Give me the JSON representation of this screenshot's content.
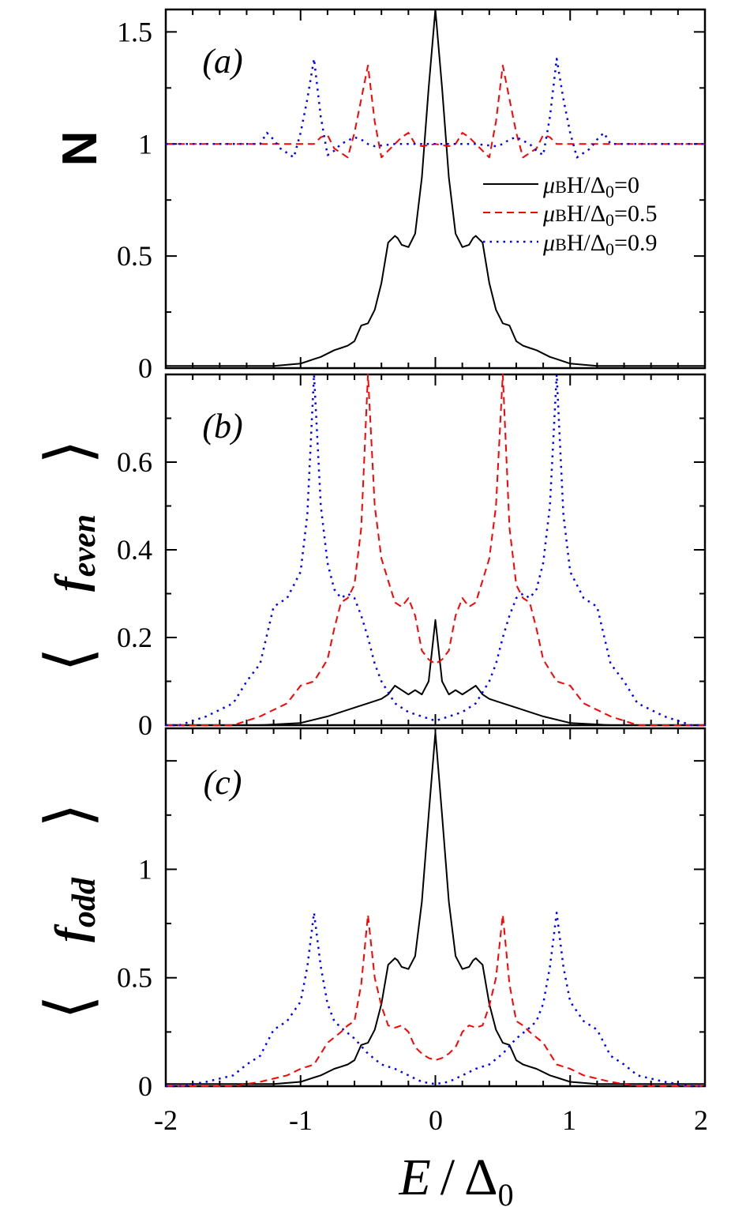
{
  "chart_data": {
    "type": "line",
    "xlabel": "E / Δ0",
    "xlabel_main": "E",
    "xlabel_slash": "/",
    "xlabel_delta": "Δ",
    "xlabel_sub": "0",
    "xlim": [
      -2,
      2
    ],
    "x_ticks": [
      "-2",
      "-1",
      "0",
      "1",
      "2"
    ],
    "legend": {
      "placement": "right, panel (a)",
      "entries": [
        {
          "mu": "μ",
          "b": "B",
          "h": "H/",
          "delta": "Δ",
          "zero": "0",
          "value": "=0",
          "color": "#000000",
          "dash": "solid"
        },
        {
          "mu": "μ",
          "b": "B",
          "h": "H/",
          "delta": "Δ",
          "zero": "0",
          "value": "=0.5",
          "color": "#ff0000",
          "dash": "dashed"
        },
        {
          "mu": "μ",
          "b": "B",
          "h": "H/",
          "delta": "Δ",
          "zero": "0",
          "value": "=0.9",
          "color": "#0000ff",
          "dash": "dotted"
        }
      ]
    },
    "panels": [
      {
        "label": "(a)",
        "ylabel": "N",
        "ylim": [
          0,
          1.6
        ],
        "y_ticks": [
          "0",
          "0.5",
          "1",
          "1.5"
        ],
        "y_tick_values": [
          0,
          0.5,
          1,
          1.5
        ],
        "series": [
          {
            "color": "#000000",
            "dash": "solid",
            "x": [
              -2,
              -1.2,
              -1.0,
              -0.9,
              -0.85,
              -0.75,
              -0.7,
              -0.65,
              -0.6,
              -0.55,
              -0.5,
              -0.45,
              -0.4,
              -0.35,
              -0.3,
              -0.28,
              -0.25,
              -0.2,
              -0.15,
              -0.1,
              -0.05,
              0,
              0.05,
              0.1,
              0.15,
              0.2,
              0.25,
              0.28,
              0.3,
              0.35,
              0.4,
              0.45,
              0.5,
              0.55,
              0.6,
              0.65,
              0.7,
              0.75,
              0.85,
              0.9,
              1.0,
              1.2,
              2
            ],
            "y": [
              0.01,
              0.01,
              0.02,
              0.04,
              0.05,
              0.08,
              0.09,
              0.1,
              0.12,
              0.19,
              0.2,
              0.26,
              0.38,
              0.56,
              0.59,
              0.58,
              0.55,
              0.54,
              0.6,
              0.85,
              1.25,
              1.6,
              1.25,
              0.85,
              0.6,
              0.54,
              0.55,
              0.58,
              0.59,
              0.56,
              0.38,
              0.26,
              0.2,
              0.19,
              0.12,
              0.1,
              0.09,
              0.08,
              0.05,
              0.04,
              0.02,
              0.01,
              0.01
            ]
          },
          {
            "color": "#ff0000",
            "dash": "dashed",
            "x": [
              -2,
              -0.9,
              -0.85,
              -0.8,
              -0.75,
              -0.65,
              -0.6,
              -0.55,
              -0.5,
              -0.45,
              -0.4,
              -0.35,
              -0.25,
              -0.2,
              -0.15,
              -0.1,
              0,
              0.1,
              0.15,
              0.2,
              0.25,
              0.35,
              0.4,
              0.45,
              0.5,
              0.55,
              0.6,
              0.65,
              0.75,
              0.8,
              0.85,
              0.9,
              2
            ],
            "y": [
              1.0,
              1.0,
              1.03,
              1.04,
              0.98,
              0.94,
              1.05,
              1.2,
              1.35,
              1.1,
              0.94,
              0.97,
              1.03,
              1.05,
              1.0,
              0.99,
              1.0,
              0.99,
              1.0,
              1.05,
              1.03,
              0.97,
              0.94,
              1.1,
              1.35,
              1.2,
              1.05,
              0.94,
              0.98,
              1.04,
              1.03,
              1.0,
              1.0
            ]
          },
          {
            "color": "#0000ff",
            "dash": "dotted",
            "x": [
              -2,
              -1.3,
              -1.25,
              -1.2,
              -1.15,
              -1.05,
              -1.0,
              -0.95,
              -0.9,
              -0.85,
              -0.8,
              -0.75,
              -0.7,
              -0.6,
              -0.55,
              -0.5,
              -0.45,
              -0.3,
              -0.2,
              0,
              0.2,
              0.3,
              0.45,
              0.5,
              0.55,
              0.6,
              0.7,
              0.75,
              0.8,
              0.85,
              0.9,
              0.95,
              1.0,
              1.05,
              1.15,
              1.2,
              1.25,
              1.3,
              2
            ],
            "y": [
              1.0,
              1.0,
              1.05,
              1.02,
              0.98,
              0.94,
              1.05,
              1.2,
              1.38,
              1.12,
              0.95,
              0.97,
              1.0,
              1.03,
              1.02,
              1.0,
              0.99,
              1.0,
              1.0,
              1.0,
              1.0,
              1.0,
              0.99,
              1.0,
              1.02,
              1.03,
              1.0,
              0.97,
              0.95,
              1.12,
              1.38,
              1.2,
              1.05,
              0.94,
              0.98,
              1.02,
              1.05,
              1.0,
              1.0
            ]
          }
        ]
      },
      {
        "label": "(b)",
        "ylabel": "⟨f_even⟩",
        "ylabel_f": "f",
        "ylabel_sub": "even",
        "ylim": [
          0,
          0.8
        ],
        "y_ticks": [
          "0",
          "0.2",
          "0.4",
          "0.6"
        ],
        "y_tick_values": [
          0,
          0.2,
          0.4,
          0.6
        ],
        "series": [
          {
            "color": "#000000",
            "dash": "solid",
            "x": [
              -2,
              -1.3,
              -1.0,
              -0.8,
              -0.6,
              -0.5,
              -0.4,
              -0.35,
              -0.3,
              -0.25,
              -0.2,
              -0.15,
              -0.1,
              -0.05,
              0,
              0.05,
              0.1,
              0.15,
              0.2,
              0.25,
              0.3,
              0.35,
              0.4,
              0.5,
              0.6,
              0.8,
              1.0,
              1.3,
              2
            ],
            "y": [
              0.0,
              0.0,
              0.005,
              0.02,
              0.04,
              0.05,
              0.06,
              0.07,
              0.09,
              0.08,
              0.07,
              0.08,
              0.07,
              0.1,
              0.24,
              0.1,
              0.07,
              0.08,
              0.07,
              0.08,
              0.09,
              0.07,
              0.06,
              0.05,
              0.04,
              0.02,
              0.005,
              0.0,
              0.0
            ]
          },
          {
            "color": "#ff0000",
            "dash": "dashed",
            "x": [
              -2,
              -1.5,
              -1.3,
              -1.1,
              -1.0,
              -0.9,
              -0.8,
              -0.75,
              -0.7,
              -0.65,
              -0.6,
              -0.55,
              -0.5,
              -0.45,
              -0.4,
              -0.35,
              -0.3,
              -0.25,
              -0.2,
              -0.15,
              -0.1,
              -0.05,
              0,
              0.05,
              0.1,
              0.15,
              0.2,
              0.25,
              0.3,
              0.35,
              0.4,
              0.45,
              0.5,
              0.55,
              0.6,
              0.65,
              0.7,
              0.75,
              0.8,
              0.9,
              1.0,
              1.1,
              1.3,
              1.5,
              2
            ],
            "y": [
              0.0,
              0.0,
              0.02,
              0.05,
              0.09,
              0.1,
              0.15,
              0.22,
              0.28,
              0.29,
              0.32,
              0.45,
              0.8,
              0.5,
              0.38,
              0.33,
              0.28,
              0.27,
              0.29,
              0.25,
              0.17,
              0.15,
              0.14,
              0.15,
              0.17,
              0.25,
              0.29,
              0.27,
              0.28,
              0.33,
              0.38,
              0.5,
              0.8,
              0.45,
              0.32,
              0.29,
              0.28,
              0.22,
              0.15,
              0.1,
              0.09,
              0.05,
              0.02,
              0.0,
              0.0
            ]
          },
          {
            "color": "#0000ff",
            "dash": "dotted",
            "x": [
              -2,
              -1.9,
              -1.7,
              -1.5,
              -1.4,
              -1.3,
              -1.2,
              -1.1,
              -1.0,
              -0.95,
              -0.9,
              -0.85,
              -0.8,
              -0.75,
              -0.7,
              -0.65,
              -0.6,
              -0.55,
              -0.5,
              -0.45,
              -0.4,
              -0.3,
              -0.2,
              -0.1,
              0,
              0.1,
              0.2,
              0.3,
              0.4,
              0.45,
              0.5,
              0.55,
              0.6,
              0.65,
              0.7,
              0.75,
              0.8,
              0.85,
              0.9,
              0.95,
              1.0,
              1.1,
              1.2,
              1.3,
              1.4,
              1.5,
              1.7,
              1.9,
              2
            ],
            "y": [
              0.0,
              0.0,
              0.02,
              0.05,
              0.1,
              0.14,
              0.27,
              0.29,
              0.35,
              0.48,
              0.8,
              0.5,
              0.37,
              0.31,
              0.29,
              0.3,
              0.29,
              0.25,
              0.2,
              0.14,
              0.1,
              0.05,
              0.03,
              0.02,
              0.01,
              0.02,
              0.03,
              0.05,
              0.1,
              0.14,
              0.2,
              0.25,
              0.29,
              0.3,
              0.29,
              0.31,
              0.37,
              0.5,
              0.8,
              0.48,
              0.35,
              0.29,
              0.27,
              0.14,
              0.1,
              0.05,
              0.02,
              0.0,
              0.0
            ]
          }
        ]
      },
      {
        "label": "(c)",
        "ylabel": "⟨f_odd⟩",
        "ylabel_f": "f",
        "ylabel_sub": "odd",
        "ylim": [
          0,
          1.65
        ],
        "y_ticks": [
          "0",
          "0.5",
          "1"
        ],
        "y_tick_values": [
          0,
          0.5,
          1
        ],
        "series": [
          {
            "color": "#000000",
            "dash": "solid",
            "x": [
              -2,
              -1.2,
              -1.0,
              -0.9,
              -0.85,
              -0.75,
              -0.7,
              -0.65,
              -0.6,
              -0.55,
              -0.5,
              -0.45,
              -0.4,
              -0.35,
              -0.3,
              -0.28,
              -0.25,
              -0.2,
              -0.15,
              -0.1,
              -0.05,
              0,
              0.05,
              0.1,
              0.15,
              0.2,
              0.25,
              0.28,
              0.3,
              0.35,
              0.4,
              0.45,
              0.5,
              0.55,
              0.6,
              0.65,
              0.7,
              0.75,
              0.85,
              0.9,
              1.0,
              1.2,
              2
            ],
            "y": [
              0.01,
              0.01,
              0.02,
              0.04,
              0.05,
              0.08,
              0.09,
              0.1,
              0.12,
              0.19,
              0.2,
              0.26,
              0.38,
              0.56,
              0.59,
              0.58,
              0.55,
              0.54,
              0.6,
              0.85,
              1.25,
              1.63,
              1.25,
              0.85,
              0.6,
              0.54,
              0.55,
              0.58,
              0.59,
              0.56,
              0.38,
              0.26,
              0.2,
              0.19,
              0.12,
              0.1,
              0.09,
              0.08,
              0.05,
              0.04,
              0.02,
              0.01,
              0.01
            ]
          },
          {
            "color": "#ff0000",
            "dash": "dashed",
            "x": [
              -2,
              -1.5,
              -1.3,
              -1.1,
              -1.0,
              -0.9,
              -0.8,
              -0.7,
              -0.65,
              -0.6,
              -0.55,
              -0.5,
              -0.45,
              -0.4,
              -0.35,
              -0.3,
              -0.25,
              -0.2,
              -0.15,
              -0.1,
              -0.05,
              0,
              0.05,
              0.1,
              0.15,
              0.2,
              0.25,
              0.3,
              0.35,
              0.4,
              0.45,
              0.5,
              0.55,
              0.6,
              0.65,
              0.7,
              0.8,
              0.9,
              1.0,
              1.1,
              1.3,
              1.5,
              2
            ],
            "y": [
              0.0,
              0.0,
              0.02,
              0.05,
              0.08,
              0.1,
              0.2,
              0.25,
              0.28,
              0.3,
              0.47,
              0.79,
              0.5,
              0.37,
              0.28,
              0.27,
              0.28,
              0.25,
              0.18,
              0.15,
              0.13,
              0.12,
              0.13,
              0.15,
              0.18,
              0.25,
              0.28,
              0.27,
              0.28,
              0.37,
              0.5,
              0.79,
              0.47,
              0.3,
              0.28,
              0.25,
              0.2,
              0.1,
              0.08,
              0.05,
              0.02,
              0.0,
              0.0
            ]
          },
          {
            "color": "#0000ff",
            "dash": "dotted",
            "x": [
              -2,
              -1.9,
              -1.7,
              -1.5,
              -1.4,
              -1.3,
              -1.2,
              -1.1,
              -1.0,
              -0.95,
              -0.9,
              -0.85,
              -0.8,
              -0.75,
              -0.7,
              -0.6,
              -0.5,
              -0.4,
              -0.3,
              -0.2,
              -0.1,
              0,
              0.1,
              0.2,
              0.3,
              0.4,
              0.5,
              0.6,
              0.7,
              0.75,
              0.8,
              0.85,
              0.9,
              0.95,
              1.0,
              1.1,
              1.2,
              1.3,
              1.4,
              1.5,
              1.7,
              1.9,
              2
            ],
            "y": [
              0.0,
              0.0,
              0.02,
              0.05,
              0.1,
              0.14,
              0.26,
              0.3,
              0.39,
              0.55,
              0.8,
              0.55,
              0.38,
              0.3,
              0.27,
              0.22,
              0.15,
              0.1,
              0.08,
              0.05,
              0.02,
              0.01,
              0.02,
              0.05,
              0.08,
              0.1,
              0.15,
              0.22,
              0.27,
              0.3,
              0.38,
              0.55,
              0.8,
              0.55,
              0.39,
              0.3,
              0.26,
              0.14,
              0.1,
              0.05,
              0.02,
              0.0,
              0.0
            ]
          }
        ]
      }
    ]
  }
}
